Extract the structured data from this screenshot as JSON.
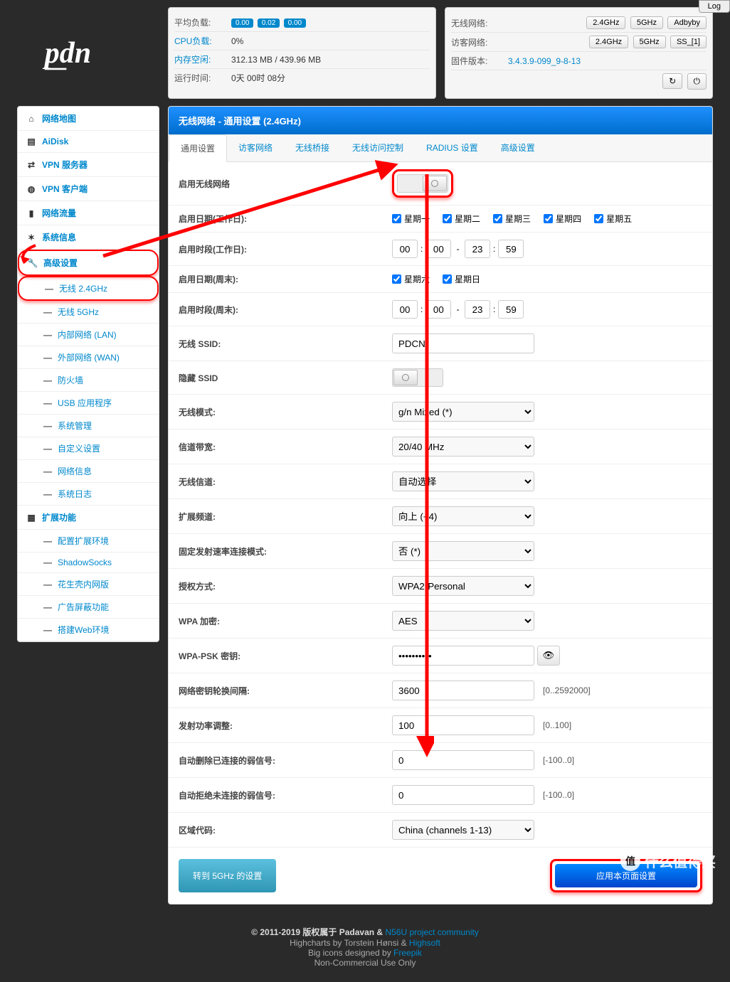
{
  "log_btn": "Log",
  "stats_left": {
    "avg_load": {
      "label": "平均负载:",
      "vals": [
        "0.00",
        "0.02",
        "0.00"
      ]
    },
    "cpu": {
      "label": "CPU负载:",
      "val": "0%"
    },
    "mem": {
      "label": "内存空闲:",
      "val": "312.13 MB / 439.96 MB"
    },
    "uptime": {
      "label": "运行时间:",
      "val": "0天 00时 08分"
    }
  },
  "stats_right": {
    "wlan": {
      "label": "无线网络:",
      "btns": [
        "2.4GHz",
        "5GHz",
        "Adbyby"
      ]
    },
    "guest": {
      "label": "访客网络:",
      "btns": [
        "2.4GHz",
        "5GHz",
        "SS_[1]"
      ]
    },
    "fw": {
      "label": "固件版本:",
      "val": "3.4.3.9-099_9-8-13"
    }
  },
  "sidebar": {
    "items": [
      {
        "icon": "home",
        "label": "网络地图"
      },
      {
        "icon": "disk",
        "label": "AiDisk"
      },
      {
        "icon": "shuffle",
        "label": "VPN 服务器"
      },
      {
        "icon": "globe",
        "label": "VPN 客户端"
      },
      {
        "icon": "signal",
        "label": "网络流量"
      },
      {
        "icon": "random",
        "label": "系统信息"
      },
      {
        "icon": "wrench",
        "label": "高级设置",
        "hl": true
      }
    ],
    "subs1": [
      {
        "label": "无线 2.4GHz",
        "hl": true
      },
      {
        "label": "无线 5GHz"
      },
      {
        "label": "内部网络 (LAN)"
      },
      {
        "label": "外部网络 (WAN)"
      },
      {
        "label": "防火墙"
      },
      {
        "label": "USB 应用程序"
      },
      {
        "label": "系统管理"
      },
      {
        "label": "自定义设置"
      },
      {
        "label": "网络信息"
      },
      {
        "label": "系统日志"
      }
    ],
    "ext_header": {
      "icon": "grid",
      "label": "扩展功能"
    },
    "subs2": [
      {
        "label": "配置扩展环境"
      },
      {
        "label": "ShadowSocks"
      },
      {
        "label": "花生壳内网版"
      },
      {
        "label": "广告屏蔽功能"
      },
      {
        "label": "搭建Web环境"
      }
    ]
  },
  "panel": {
    "title": "无线网络 - 通用设置 (2.4GHz)",
    "tabs": [
      "通用设置",
      "访客网络",
      "无线桥接",
      "无线访问控制",
      "RADIUS 设置",
      "高级设置"
    ],
    "active_tab": 0,
    "rows": {
      "enable_radio": "启用无线网络",
      "work_days": {
        "label": "启用日期(工作日):",
        "opts": [
          "星期一",
          "星期二",
          "星期三",
          "星期四",
          "星期五"
        ]
      },
      "work_time": {
        "label": "启用时段(工作日):",
        "h1": "00",
        "m1": "00",
        "h2": "23",
        "m2": "59"
      },
      "weekend_days": {
        "label": "启用日期(周末):",
        "opts": [
          "星期六",
          "星期日"
        ]
      },
      "weekend_time": {
        "label": "启用时段(周末):",
        "h1": "00",
        "m1": "00",
        "h2": "23",
        "m2": "59"
      },
      "ssid": {
        "label": "无线 SSID:",
        "val": "PDCN"
      },
      "hide_ssid": {
        "label": "隐藏 SSID"
      },
      "mode": {
        "label": "无线模式:",
        "val": "g/n Mixed (*)"
      },
      "bw": {
        "label": "信道带宽:",
        "val": "20/40 MHz"
      },
      "channel": {
        "label": "无线信道:",
        "val": "自动选择"
      },
      "ext_ch": {
        "label": "扩展频道:",
        "val": "向上 (+4)"
      },
      "fixed_rate": {
        "label": "固定发射速率连接模式:",
        "val": "否 (*)"
      },
      "auth": {
        "label": "授权方式:",
        "val": "WPA2-Personal"
      },
      "wpa_enc": {
        "label": "WPA 加密:",
        "val": "AES"
      },
      "psk": {
        "label": "WPA-PSK 密钥:",
        "val": "••••••••••"
      },
      "rekey": {
        "label": "网络密钥轮换间隔:",
        "val": "3600",
        "hint": "[0..2592000]"
      },
      "txpower": {
        "label": "发射功率调整:",
        "val": "100",
        "hint": "[0..100]"
      },
      "kick_rssi": {
        "label": "自动删除已连接的弱信号:",
        "val": "0",
        "hint": "[-100..0]"
      },
      "reject_rssi": {
        "label": "自动拒绝未连接的弱信号:",
        "val": "0",
        "hint": "[-100..0]"
      },
      "region": {
        "label": "区域代码:",
        "val": "China (channels 1-13)"
      }
    },
    "btn_switch": "转到 5GHz 的设置",
    "btn_apply": "应用本页面设置"
  },
  "footer": {
    "line1a": "© 2011-2019 版权属于 Padavan & ",
    "line1b": "N56U project community",
    "line2a": "Highcharts by Torstein Hønsi & ",
    "line2b": "Highsoft",
    "line3a": "Big icons designed by ",
    "line3b": "Freepik",
    "line4": "Non-Commercial Use Only"
  },
  "watermark": "什么值得买"
}
